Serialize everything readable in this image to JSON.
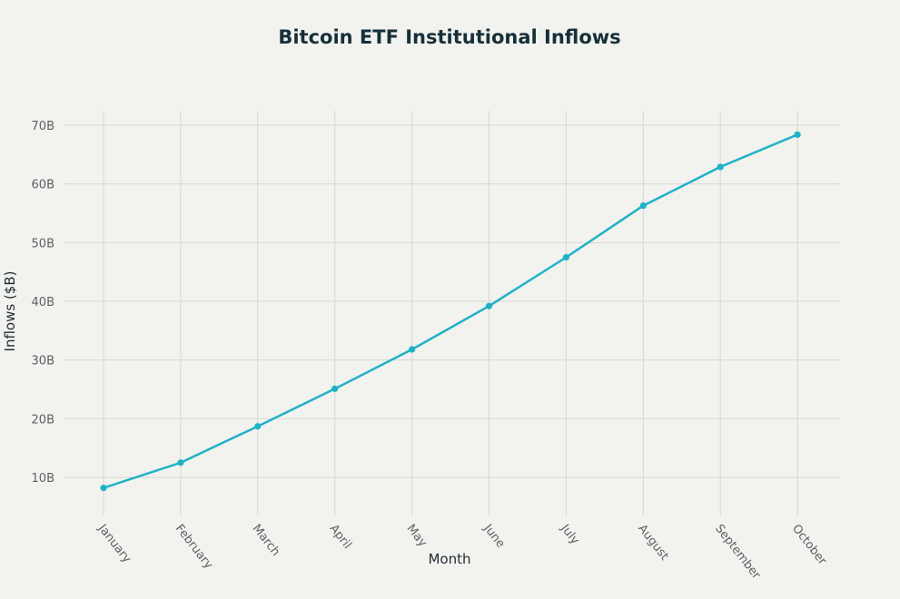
{
  "chart_data": {
    "type": "line",
    "title": "Bitcoin ETF Institutional Inflows",
    "xlabel": "Month",
    "ylabel": "Inflows ($B)",
    "categories": [
      "January",
      "February",
      "March",
      "April",
      "May",
      "June",
      "July",
      "August",
      "September",
      "October"
    ],
    "series": [
      {
        "name": "Inflows",
        "values": [
          8.2,
          12.5,
          18.7,
          25.1,
          31.8,
          39.2,
          47.5,
          56.3,
          62.9,
          68.4
        ]
      }
    ],
    "yticks": [
      10,
      20,
      30,
      40,
      50,
      60,
      70
    ],
    "ytick_labels": [
      "10B",
      "20B",
      "30B",
      "40B",
      "50B",
      "60B",
      "70B"
    ],
    "ylim": [
      4.2,
      72.5
    ],
    "grid": true,
    "colors": {
      "line": "#1fb2c7",
      "grid": "#d6d8d3",
      "background": "#f2f2ee",
      "title": "#16303a"
    }
  }
}
